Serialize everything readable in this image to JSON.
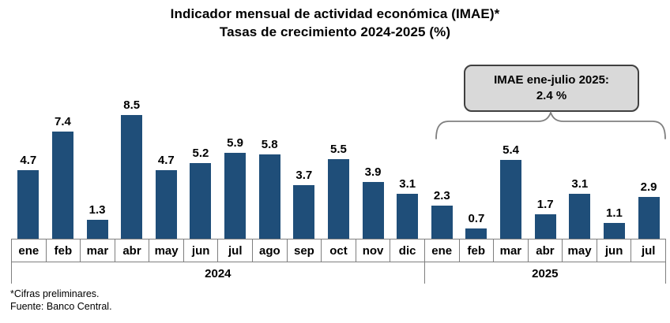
{
  "title": {
    "line1": "Indicador mensual de actividad económica (IMAE)*",
    "line2": "Tasas de crecimiento 2024-2025 (%)"
  },
  "callout": {
    "line1": "IMAE ene-julio 2025:",
    "line2": "2.4 %"
  },
  "chart_data": {
    "type": "bar",
    "title": "Indicador mensual de actividad económica (IMAE)* — Tasas de crecimiento 2024-2025 (%)",
    "categories": [
      "ene",
      "feb",
      "mar",
      "abr",
      "may",
      "jun",
      "jul",
      "ago",
      "sep",
      "oct",
      "nov",
      "dic",
      "ene",
      "feb",
      "mar",
      "abr",
      "may",
      "jun",
      "jul"
    ],
    "values": [
      4.7,
      7.4,
      1.3,
      8.5,
      4.7,
      5.2,
      5.9,
      5.8,
      3.7,
      5.5,
      3.9,
      3.1,
      2.3,
      0.7,
      5.4,
      1.7,
      3.1,
      1.1,
      2.9
    ],
    "groups": [
      {
        "label": "2024",
        "span": 12
      },
      {
        "label": "2025",
        "span": 7
      }
    ],
    "annotation": "IMAE ene-julio 2025: 2.4 %",
    "xlabel": "",
    "ylabel": "",
    "ylim": [
      0,
      9
    ],
    "grid": false,
    "legend": "none",
    "value_labels": true
  },
  "footnotes": {
    "line1": "*Cifras preliminares.",
    "line2": "Fuente: Banco Central."
  },
  "colors": {
    "bar": "#1F4E79",
    "callout_fill": "#D9D9D9",
    "callout_border": "#404040",
    "brace": "#808080",
    "axis": "#7F7F7F",
    "text": "#000000"
  }
}
